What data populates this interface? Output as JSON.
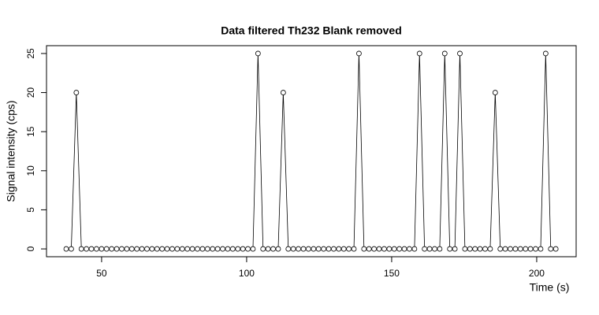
{
  "chart_data": {
    "type": "line",
    "title": "Data filtered Th232 Blank removed",
    "x_label": "Time (s)",
    "y_label": "Signal intensity (cps)",
    "x": [
      37.8,
      39.54,
      41.28,
      43.02,
      44.76,
      46.5,
      48.24,
      49.98,
      51.72,
      53.46,
      55.2,
      56.94,
      58.68,
      60.42,
      62.16,
      63.9,
      65.64,
      67.38,
      69.12,
      70.86,
      72.6,
      74.34,
      76.08,
      77.82,
      79.56,
      81.3,
      83.04,
      84.78,
      86.52,
      88.26,
      90.0,
      91.74,
      93.48,
      95.22,
      96.96,
      98.7,
      100.44,
      102.18,
      103.92,
      105.66,
      107.4,
      109.14,
      110.88,
      112.62,
      114.36,
      116.1,
      117.84,
      119.58,
      121.32,
      123.06,
      124.8,
      126.54,
      128.28,
      130.02,
      131.76,
      133.5,
      135.24,
      136.98,
      138.72,
      140.46,
      142.2,
      143.94,
      145.68,
      147.42,
      149.16,
      150.9,
      152.64,
      154.38,
      156.12,
      157.86,
      159.6,
      161.34,
      163.08,
      164.82,
      166.56,
      168.3,
      170.04,
      171.78,
      173.52,
      175.26,
      177.0,
      178.74,
      180.48,
      182.22,
      183.96,
      185.7,
      187.44,
      189.18,
      190.92,
      192.66,
      194.4,
      196.14,
      197.88,
      199.62,
      201.36,
      203.1,
      204.84,
      206.58
    ],
    "values": [
      0,
      0,
      20,
      0,
      0,
      0,
      0,
      0,
      0,
      0,
      0,
      0,
      0,
      0,
      0,
      0,
      0,
      0,
      0,
      0,
      0,
      0,
      0,
      0,
      0,
      0,
      0,
      0,
      0,
      0,
      0,
      0,
      0,
      0,
      0,
      0,
      0,
      0,
      25,
      0,
      0,
      0,
      0,
      20,
      0,
      0,
      0,
      0,
      0,
      0,
      0,
      0,
      0,
      0,
      0,
      0,
      0,
      0,
      25,
      0,
      0,
      0,
      0,
      0,
      0,
      0,
      0,
      0,
      0,
      0,
      25,
      0,
      0,
      0,
      0,
      25,
      0,
      0,
      25,
      0,
      0,
      0,
      0,
      0,
      0,
      20,
      0,
      0,
      0,
      0,
      0,
      0,
      0,
      0,
      0,
      25,
      0,
      0
    ],
    "color": "#000000",
    "xlim": [
      31.0,
      213.6
    ],
    "xticks": [
      50,
      100,
      150,
      200
    ],
    "ylim": [
      -1.0,
      26.0
    ],
    "yticks": [
      0,
      5,
      10,
      15,
      20,
      25
    ]
  }
}
